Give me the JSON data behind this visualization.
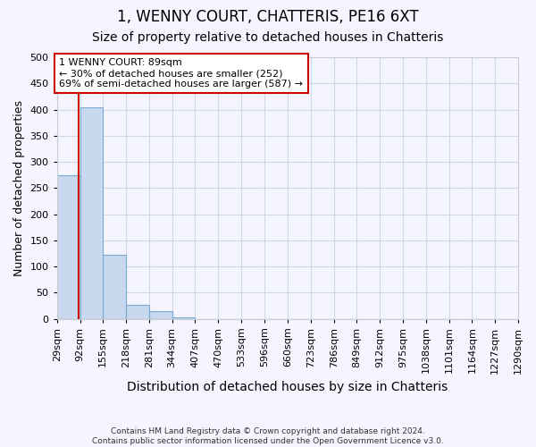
{
  "title": "1, WENNY COURT, CHATTERIS, PE16 6XT",
  "subtitle": "Size of property relative to detached houses in Chatteris",
  "xlabel": "Distribution of detached houses by size in Chatteris",
  "ylabel": "Number of detached properties",
  "bin_edges": [
    29,
    92,
    155,
    218,
    281,
    344,
    407,
    470,
    533,
    596,
    660,
    723,
    786,
    849,
    912,
    975,
    1038,
    1101,
    1164,
    1227,
    1290
  ],
  "bar_heights": [
    275,
    405,
    122,
    27,
    15,
    2,
    0,
    0,
    0,
    0,
    0,
    0,
    0,
    0,
    0,
    0,
    0,
    0,
    0,
    0
  ],
  "bar_color": "#c8d8ef",
  "bar_edge_color": "#7aabcf",
  "property_line_x": 89,
  "property_line_color": "#cc0000",
  "annotation_text": "1 WENNY COURT: 89sqm\n← 30% of detached houses are smaller (252)\n69% of semi-detached houses are larger (587) →",
  "annotation_box_color": "#cc0000",
  "ylim": [
    0,
    500
  ],
  "yticks": [
    0,
    50,
    100,
    150,
    200,
    250,
    300,
    350,
    400,
    450,
    500
  ],
  "footnote": "Contains HM Land Registry data © Crown copyright and database right 2024.\nContains public sector information licensed under the Open Government Licence v3.0.",
  "title_fontsize": 12,
  "subtitle_fontsize": 10,
  "axis_label_fontsize": 9,
  "tick_fontsize": 8,
  "background_color": "#f5f5ff",
  "plot_background_color": "#f5f5ff",
  "grid_color": "#d0d8e8"
}
